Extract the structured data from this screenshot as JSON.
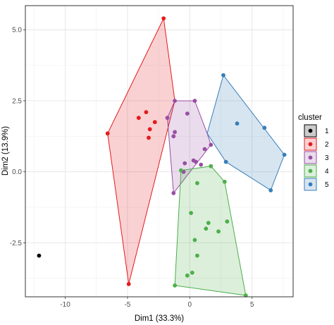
{
  "chart_data": {
    "type": "scatter",
    "xlabel": "Dim1 (33.3%)",
    "ylabel": "Dim2 (13.9%)",
    "xlim": [
      -13.2,
      8.3
    ],
    "ylim": [
      -4.4,
      5.85
    ],
    "x_ticks": [
      -10,
      -5,
      0,
      5
    ],
    "y_ticks": [
      -2.5,
      0.0,
      2.5,
      5.0
    ],
    "y_tick_labels": [
      "-2.5",
      "0.0",
      "2.5",
      "5.0"
    ],
    "x_tick_labels": [
      "-10",
      "-5",
      "0",
      "5"
    ],
    "grid": true,
    "legend_title": "cluster",
    "legend_position": "right",
    "series": [
      {
        "name": "1",
        "color": "#000000",
        "points": [
          [
            -12.1,
            -2.95
          ]
        ],
        "hull": [
          [
            -12.1,
            -2.95
          ]
        ]
      },
      {
        "name": "2",
        "color": "#e41a1c",
        "points": [
          [
            -2.1,
            5.4
          ],
          [
            -6.6,
            1.35
          ],
          [
            -4.9,
            -3.95
          ],
          [
            -3.5,
            2.1
          ],
          [
            -4.1,
            1.9
          ],
          [
            -3.2,
            1.5
          ],
          [
            -3.3,
            1.2
          ],
          [
            -2.8,
            1.75
          ]
        ],
        "hull": [
          [
            -2.1,
            5.4
          ],
          [
            -6.6,
            1.35
          ],
          [
            -4.9,
            -3.95
          ],
          [
            -1.2,
            2.5
          ],
          [
            -2.1,
            5.4
          ]
        ]
      },
      {
        "name": "3",
        "color": "#984ea3",
        "points": [
          [
            -1.2,
            2.5
          ],
          [
            -1.8,
            1.9
          ],
          [
            0.4,
            2.5
          ],
          [
            -0.2,
            2.05
          ],
          [
            -1.2,
            1.4
          ],
          [
            -1.3,
            1.25
          ],
          [
            1.2,
            0.8
          ],
          [
            1.7,
            0.95
          ],
          [
            0.3,
            0.4
          ],
          [
            -0.4,
            0.3
          ],
          [
            -0.5,
            0.0
          ],
          [
            -1.3,
            -0.75
          ],
          [
            0.9,
            0.25
          ],
          [
            0.5,
            0.35
          ]
        ],
        "hull": [
          [
            -1.2,
            2.5
          ],
          [
            -1.8,
            1.9
          ],
          [
            -1.3,
            -0.75
          ],
          [
            1.7,
            0.95
          ],
          [
            1.4,
            1.35
          ],
          [
            0.4,
            2.5
          ],
          [
            -1.2,
            2.5
          ]
        ]
      },
      {
        "name": "4",
        "color": "#4daf4a",
        "points": [
          [
            1.7,
            0.2
          ],
          [
            -0.7,
            0.05
          ],
          [
            0.6,
            -0.4
          ],
          [
            2.8,
            -0.35
          ],
          [
            0.1,
            -1.45
          ],
          [
            1.5,
            -1.8
          ],
          [
            1.3,
            -2.0
          ],
          [
            2.3,
            -2.1
          ],
          [
            3.0,
            -1.75
          ],
          [
            0.4,
            -2.4
          ],
          [
            0.6,
            -2.95
          ],
          [
            0.2,
            -3.55
          ],
          [
            -0.2,
            -3.65
          ],
          [
            -1.2,
            -4.0
          ],
          [
            4.5,
            -4.35
          ]
        ],
        "hull": [
          [
            -0.7,
            0.05
          ],
          [
            1.7,
            0.2
          ],
          [
            2.8,
            -0.35
          ],
          [
            4.5,
            -4.35
          ],
          [
            -1.2,
            -4.0
          ],
          [
            -0.7,
            0.05
          ]
        ]
      },
      {
        "name": "5",
        "color": "#377eb8",
        "points": [
          [
            2.7,
            3.4
          ],
          [
            3.8,
            1.7
          ],
          [
            6.0,
            1.55
          ],
          [
            7.6,
            0.6
          ],
          [
            2.9,
            0.35
          ],
          [
            6.5,
            -0.65
          ]
        ],
        "hull": [
          [
            2.7,
            3.4
          ],
          [
            1.4,
            1.35
          ],
          [
            2.9,
            0.35
          ],
          [
            6.5,
            -0.65
          ],
          [
            7.6,
            0.6
          ],
          [
            2.7,
            3.4
          ]
        ]
      }
    ]
  }
}
